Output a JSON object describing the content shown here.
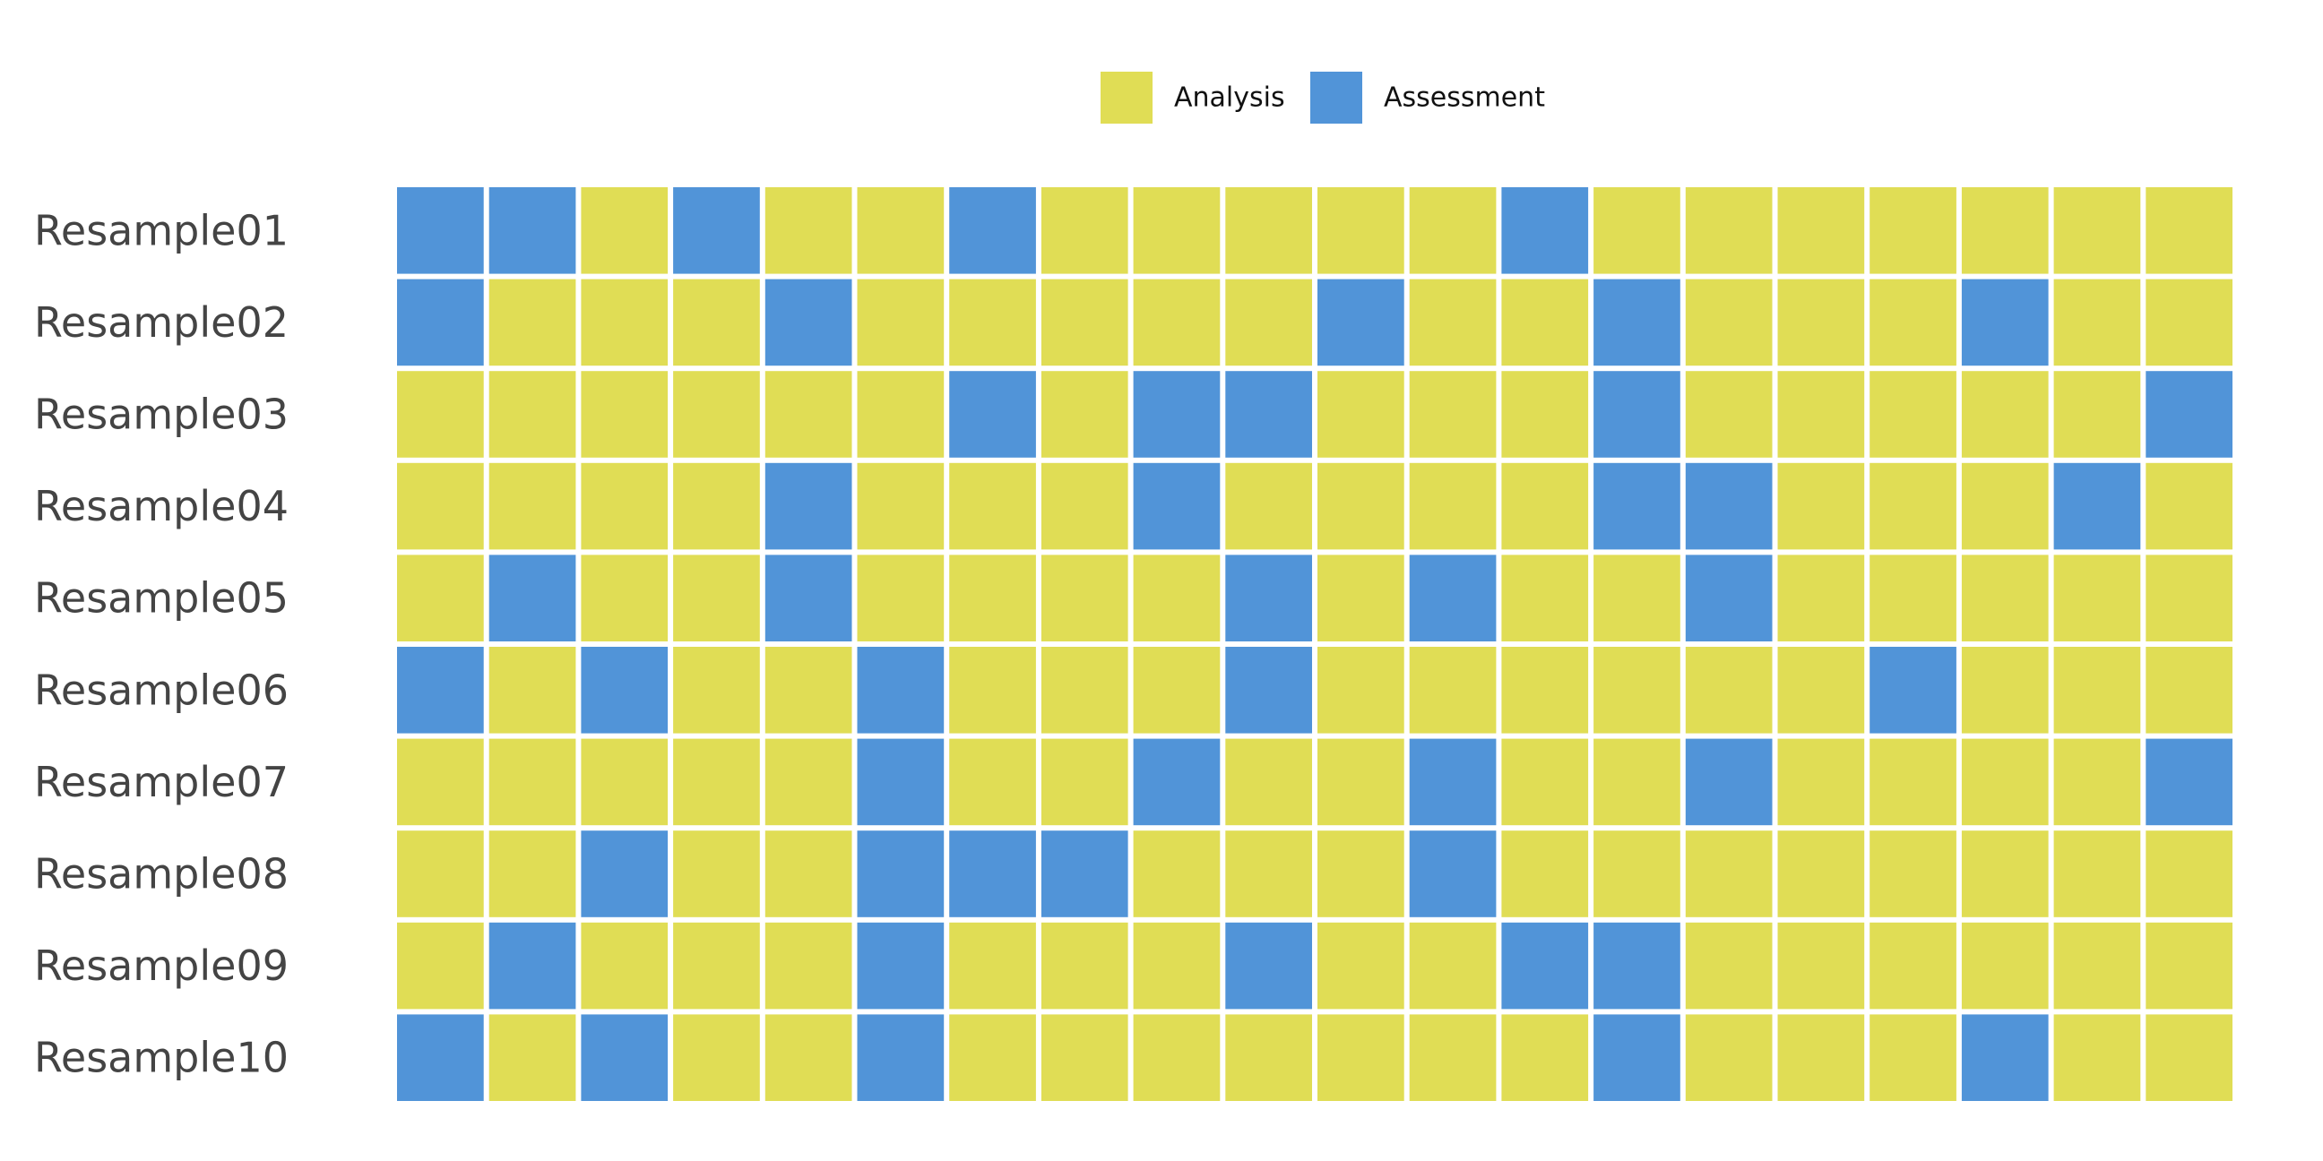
{
  "chart_data": {
    "type": "heatmap",
    "title": "",
    "xlabel": "",
    "ylabel": "",
    "legend": {
      "placement": "top-center",
      "entries": [
        {
          "label": "Analysis",
          "color": "#E0DD55"
        },
        {
          "label": "Assessment",
          "color": "#5194D8"
        }
      ]
    },
    "rows": [
      "Resample01",
      "Resample02",
      "Resample03",
      "Resample04",
      "Resample05",
      "Resample06",
      "Resample07",
      "Resample08",
      "Resample09",
      "Resample10"
    ],
    "cell_values": [
      [
        "Assessment",
        "Assessment",
        "Analysis",
        "Assessment",
        "Analysis",
        "Analysis",
        "Assessment",
        "Analysis",
        "Analysis",
        "Analysis",
        "Analysis",
        "Analysis",
        "Assessment",
        "Analysis",
        "Analysis",
        "Analysis",
        "Analysis",
        "Analysis",
        "Analysis",
        "Analysis"
      ],
      [
        "Assessment",
        "Analysis",
        "Analysis",
        "Analysis",
        "Assessment",
        "Analysis",
        "Analysis",
        "Analysis",
        "Analysis",
        "Analysis",
        "Assessment",
        "Analysis",
        "Analysis",
        "Assessment",
        "Analysis",
        "Analysis",
        "Analysis",
        "Assessment",
        "Analysis",
        "Analysis"
      ],
      [
        "Analysis",
        "Analysis",
        "Analysis",
        "Analysis",
        "Analysis",
        "Analysis",
        "Assessment",
        "Analysis",
        "Assessment",
        "Assessment",
        "Analysis",
        "Analysis",
        "Analysis",
        "Assessment",
        "Analysis",
        "Analysis",
        "Analysis",
        "Analysis",
        "Analysis",
        "Assessment"
      ],
      [
        "Analysis",
        "Analysis",
        "Analysis",
        "Analysis",
        "Assessment",
        "Analysis",
        "Analysis",
        "Analysis",
        "Assessment",
        "Analysis",
        "Analysis",
        "Analysis",
        "Analysis",
        "Assessment",
        "Assessment",
        "Analysis",
        "Analysis",
        "Analysis",
        "Assessment",
        "Analysis"
      ],
      [
        "Analysis",
        "Assessment",
        "Analysis",
        "Analysis",
        "Assessment",
        "Analysis",
        "Analysis",
        "Analysis",
        "Analysis",
        "Assessment",
        "Analysis",
        "Assessment",
        "Analysis",
        "Analysis",
        "Assessment",
        "Analysis",
        "Analysis",
        "Analysis",
        "Analysis",
        "Analysis"
      ],
      [
        "Assessment",
        "Analysis",
        "Assessment",
        "Analysis",
        "Analysis",
        "Assessment",
        "Analysis",
        "Analysis",
        "Analysis",
        "Assessment",
        "Analysis",
        "Analysis",
        "Analysis",
        "Analysis",
        "Analysis",
        "Analysis",
        "Assessment",
        "Analysis",
        "Analysis",
        "Analysis"
      ],
      [
        "Analysis",
        "Analysis",
        "Analysis",
        "Analysis",
        "Analysis",
        "Assessment",
        "Analysis",
        "Analysis",
        "Assessment",
        "Analysis",
        "Analysis",
        "Assessment",
        "Analysis",
        "Analysis",
        "Assessment",
        "Analysis",
        "Analysis",
        "Analysis",
        "Analysis",
        "Assessment"
      ],
      [
        "Analysis",
        "Analysis",
        "Assessment",
        "Analysis",
        "Analysis",
        "Assessment",
        "Assessment",
        "Assessment",
        "Analysis",
        "Analysis",
        "Analysis",
        "Assessment",
        "Analysis",
        "Analysis",
        "Analysis",
        "Analysis",
        "Analysis",
        "Analysis",
        "Analysis",
        "Analysis"
      ],
      [
        "Analysis",
        "Assessment",
        "Analysis",
        "Analysis",
        "Analysis",
        "Assessment",
        "Analysis",
        "Analysis",
        "Analysis",
        "Assessment",
        "Analysis",
        "Analysis",
        "Assessment",
        "Assessment",
        "Analysis",
        "Analysis",
        "Analysis",
        "Analysis",
        "Analysis",
        "Analysis"
      ],
      [
        "Assessment",
        "Analysis",
        "Assessment",
        "Analysis",
        "Analysis",
        "Assessment",
        "Analysis",
        "Analysis",
        "Analysis",
        "Analysis",
        "Analysis",
        "Analysis",
        "Analysis",
        "Assessment",
        "Analysis",
        "Analysis",
        "Analysis",
        "Assessment",
        "Analysis",
        "Analysis"
      ]
    ]
  }
}
